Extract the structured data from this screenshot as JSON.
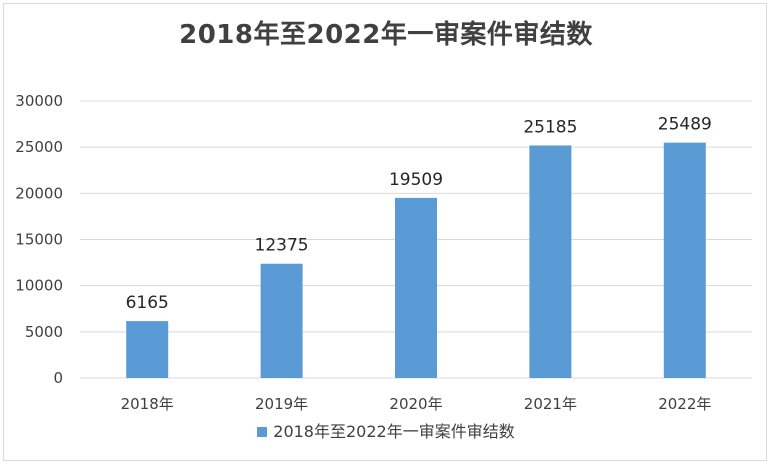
{
  "chart_data": {
    "type": "bar",
    "title": "2018年至2022年一审案件审结数",
    "categories": [
      "2018年",
      "2019年",
      "2020年",
      "2021年",
      "2022年"
    ],
    "series": [
      {
        "name": "2018年至2022年一审案件审结数",
        "values": [
          6165,
          12375,
          19509,
          25185,
          25489
        ],
        "color": "#5b9bd5"
      }
    ],
    "ylim": [
      0,
      30000
    ],
    "yticks": [
      0,
      5000,
      10000,
      15000,
      20000,
      25000,
      30000
    ],
    "grid": true,
    "legend_position": "bottom",
    "data_labels": true,
    "grid_color": "#d9d9d9",
    "text_color": "#404040"
  }
}
